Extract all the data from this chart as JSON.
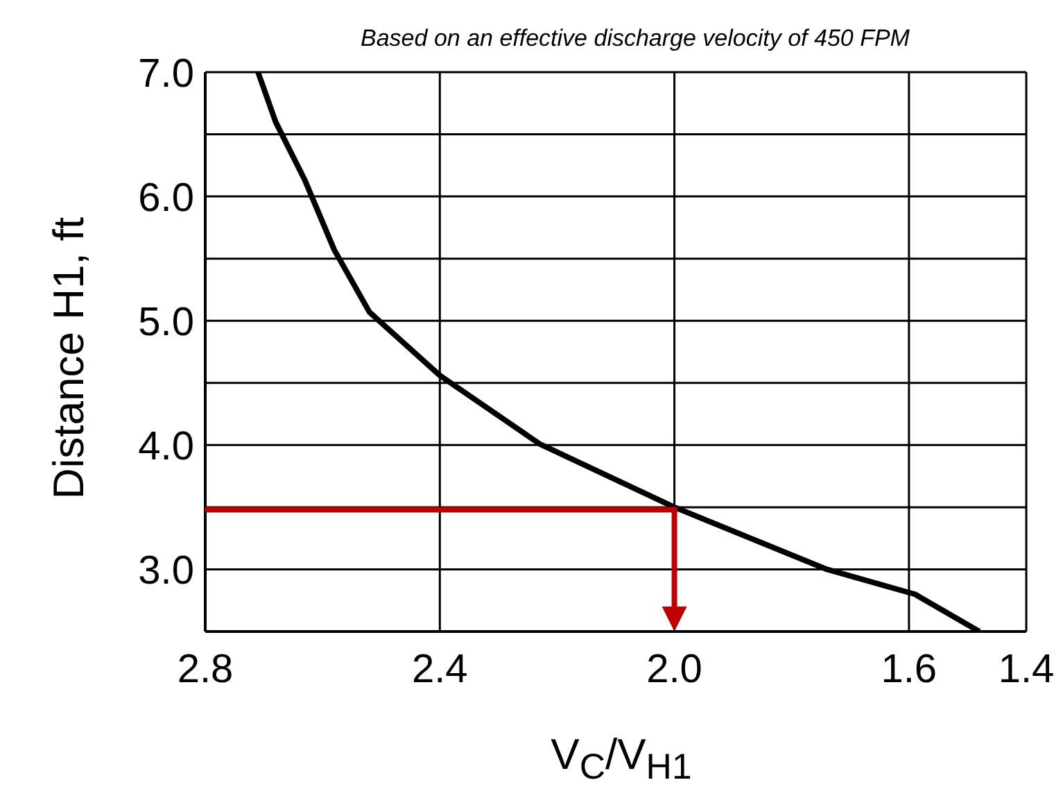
{
  "chart_data": {
    "type": "line",
    "subtitle": "Based on an effective discharge velocity of 450 FPM",
    "xlabel": "V$_{C}$/V$_{H1}$",
    "ylabel": "Distance H1, ft",
    "xlim": [
      2.8,
      1.4
    ],
    "xticks": [
      {
        "value": 2.8,
        "label": "2.8"
      },
      {
        "value": 2.4,
        "label": "2.4"
      },
      {
        "value": 2.0,
        "label": "2.0"
      },
      {
        "value": 1.6,
        "label": "1.6"
      },
      {
        "value": 1.4,
        "label": "1.4"
      }
    ],
    "ylim": [
      2.5,
      7.0
    ],
    "yticks": [
      {
        "value": 2.5,
        "label": null
      },
      {
        "value": 3.0,
        "label": "3.0"
      },
      {
        "value": 3.5,
        "label": null
      },
      {
        "value": 4.0,
        "label": "4.0"
      },
      {
        "value": 4.5,
        "label": null
      },
      {
        "value": 5.0,
        "label": "5.0"
      },
      {
        "value": 5.5,
        "label": null
      },
      {
        "value": 6.0,
        "label": "6.0"
      },
      {
        "value": 6.5,
        "label": null
      },
      {
        "value": 7.0,
        "label": "7.0"
      }
    ],
    "grid": true,
    "marker": "none",
    "line_style": "solid",
    "ref_lines": [
      {
        "axis": "y",
        "value": 3.48,
        "color": "#c00000"
      },
      {
        "axis": "x",
        "value": 2.0,
        "color": "#c00000"
      }
    ],
    "series": [
      {
        "color": "#000000",
        "x": [
          2.71,
          2.68,
          2.63,
          2.58,
          2.52,
          2.4,
          2.23,
          2.0,
          1.74,
          1.59,
          1.48
        ],
        "values": [
          7.0,
          6.6,
          6.13,
          5.57,
          5.07,
          4.56,
          4.01,
          3.5,
          3.0,
          2.8,
          2.5
        ]
      }
    ]
  }
}
